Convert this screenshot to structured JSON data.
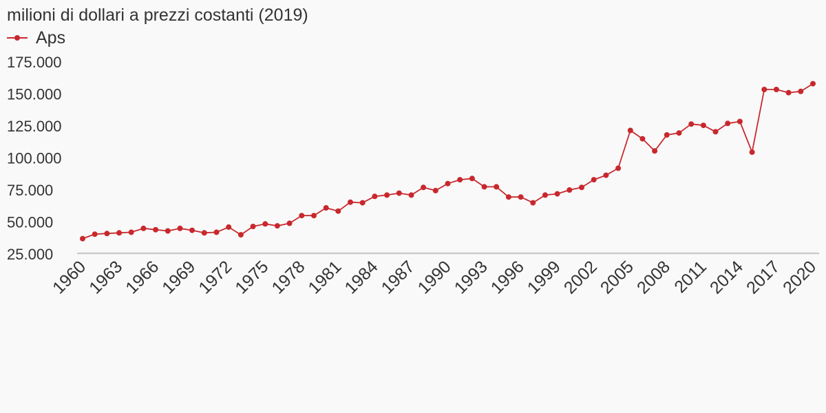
{
  "colors": {
    "series": "#c8282d",
    "axis": "#cccccc",
    "text": "#333333",
    "background": "#f9f9f9"
  },
  "chart_data": {
    "type": "line",
    "title": "",
    "subtitle": "milioni di dollari a prezzi costanti (2019)",
    "xlabel": "",
    "ylabel": "",
    "ylim": [
      25000,
      175000
    ],
    "xlim": [
      1960,
      2020
    ],
    "y_ticks": [
      25000,
      50000,
      75000,
      100000,
      125000,
      150000,
      175000
    ],
    "y_tick_labels": [
      "25.000",
      "50.000",
      "75.000",
      "100.000",
      "125.000",
      "150.000",
      "175.000"
    ],
    "x_tick_labels": [
      "1960",
      "1963",
      "1966",
      "1969",
      "1972",
      "1975",
      "1978",
      "1981",
      "1984",
      "1987",
      "1990",
      "1993",
      "1996",
      "1999",
      "2002",
      "2005",
      "2008",
      "2011",
      "2014",
      "2017",
      "2020"
    ],
    "grid": false,
    "legend": "top-left",
    "x": [
      1960,
      1961,
      1962,
      1963,
      1964,
      1965,
      1966,
      1967,
      1968,
      1969,
      1970,
      1971,
      1972,
      1973,
      1974,
      1975,
      1976,
      1977,
      1978,
      1979,
      1980,
      1981,
      1982,
      1983,
      1984,
      1985,
      1986,
      1987,
      1988,
      1989,
      1990,
      1991,
      1992,
      1993,
      1994,
      1995,
      1996,
      1997,
      1998,
      1999,
      2000,
      2001,
      2002,
      2003,
      2004,
      2005,
      2006,
      2007,
      2008,
      2009,
      2010,
      2011,
      2012,
      2013,
      2014,
      2015,
      2016,
      2017,
      2018,
      2019,
      2020
    ],
    "series": [
      {
        "name": "Aps",
        "values": [
          37000,
          40500,
          41000,
          41500,
          42000,
          45000,
          44000,
          43000,
          45000,
          43500,
          41500,
          42000,
          46000,
          40000,
          46500,
          48500,
          47000,
          49000,
          55000,
          55000,
          61000,
          58500,
          65500,
          65000,
          70000,
          71000,
          72500,
          71000,
          77000,
          74500,
          80000,
          83000,
          84000,
          77500,
          77500,
          69500,
          69500,
          65000,
          71000,
          72000,
          75000,
          77000,
          83000,
          86500,
          92000,
          121500,
          115000,
          105500,
          118000,
          119500,
          126500,
          125500,
          120500,
          127000,
          128500,
          104500,
          153500,
          153500,
          151000,
          152000,
          158000
        ]
      }
    ]
  }
}
